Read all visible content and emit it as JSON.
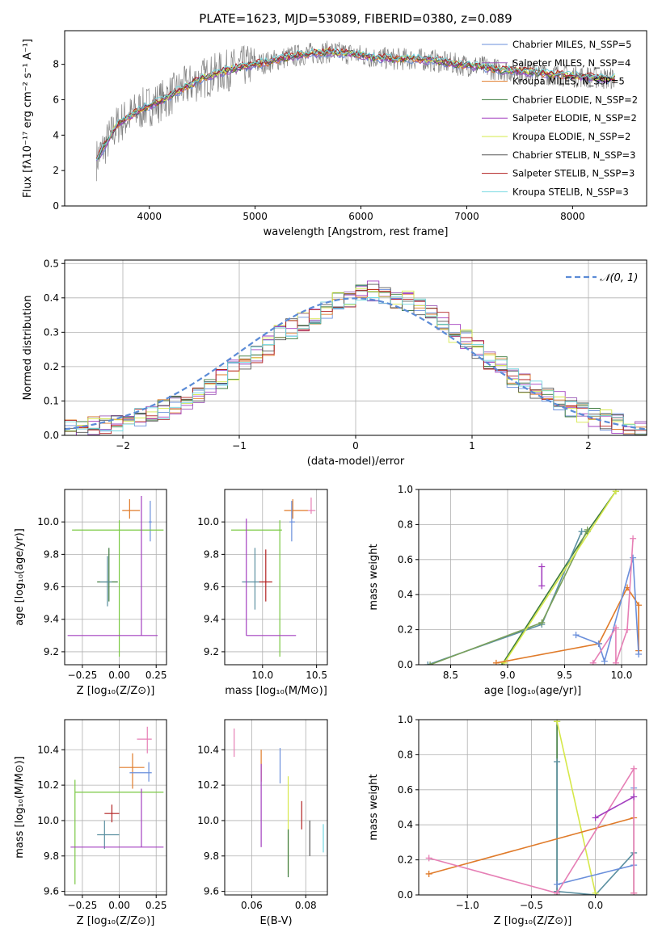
{
  "figure_title": "PLATE=1623, MJD=53089, FIBERID=0380, z=0.089",
  "chart_data": [
    {
      "id": "spectrum",
      "type": "line",
      "title": "PLATE=1623, MJD=53089, FIBERID=0380, z=0.089",
      "xlabel": "wavelength [Angstrom, rest frame]",
      "ylabel": "Flux [fλ10⁻¹⁷ erg cm⁻² s⁻¹ A⁻¹]",
      "xlim": [
        3200,
        8700
      ],
      "ylim": [
        0,
        9.9
      ],
      "xticks": [
        4000,
        5000,
        6000,
        7000,
        8000
      ],
      "xtick_labels": [
        "4000",
        "5000",
        "6000",
        "7000",
        "8000"
      ],
      "yticks": [
        0,
        2,
        4,
        6,
        8
      ],
      "ytick_labels": [
        "0",
        "2",
        "4",
        "6",
        "8"
      ],
      "grid": false,
      "legend_position": "right",
      "data_continuum": {
        "x": [
          3500,
          3700,
          3900,
          4100,
          4300,
          4500,
          4700,
          4900,
          5100,
          5300,
          5500,
          5700,
          5900,
          6100,
          6300,
          6500,
          6700,
          6900,
          7100,
          7300,
          7500,
          7700,
          7900,
          8100,
          8300
        ],
        "y": [
          2.6,
          4.6,
          5.4,
          5.9,
          6.6,
          7.2,
          7.6,
          7.9,
          8.1,
          8.4,
          8.6,
          8.7,
          8.6,
          8.4,
          8.3,
          8.3,
          8.2,
          8.0,
          7.9,
          7.7,
          7.6,
          7.5,
          7.4,
          7.3,
          7.2
        ]
      },
      "series": [
        {
          "name": "Chabrier MILES, N_SSP=5",
          "color": "#6a8fdb"
        },
        {
          "name": "Salpeter MILES, N_SSP=4",
          "color": "#9b59b6"
        },
        {
          "name": "Kroupa MILES, N_SSP=5",
          "color": "#e07b2a"
        },
        {
          "name": "Chabrier ELODIE, N_SSP=2",
          "color": "#3c7a3c"
        },
        {
          "name": "Salpeter ELODIE, N_SSP=2",
          "color": "#a33fbf"
        },
        {
          "name": "Kroupa ELODIE, N_SSP=2",
          "color": "#d6e84a"
        },
        {
          "name": "Chabrier STELIB, N_SSP=3",
          "color": "#555555"
        },
        {
          "name": "Salpeter STELIB, N_SSP=3",
          "color": "#b22222"
        },
        {
          "name": "Kroupa STELIB, N_SSP=3",
          "color": "#72d7e0"
        }
      ]
    },
    {
      "id": "residuals",
      "type": "bar",
      "xlabel": "(data-model)/error",
      "ylabel": "Normed distribution",
      "xlim": [
        -2.5,
        2.5
      ],
      "ylim": [
        0,
        0.51
      ],
      "xticks": [
        -2,
        -1,
        0,
        1,
        2
      ],
      "xtick_labels": [
        "−2",
        "−1",
        "0",
        "1",
        "2"
      ],
      "yticks": [
        0,
        0.1,
        0.2,
        0.3,
        0.4,
        0.5
      ],
      "ytick_labels": [
        "0.0",
        "0.1",
        "0.2",
        "0.3",
        "0.4",
        "0.5"
      ],
      "grid": true,
      "legend_position": "top-right",
      "legend_label": "𝒩(0, 1)",
      "bin_width": 0.1,
      "reference": "normal(0,1)",
      "histogram_levels": [
        0.015,
        0.02,
        0.025,
        0.03,
        0.035,
        0.04,
        0.05,
        0.06,
        0.075,
        0.09,
        0.1,
        0.12,
        0.14,
        0.165,
        0.19,
        0.21,
        0.235,
        0.26,
        0.29,
        0.31,
        0.33,
        0.35,
        0.37,
        0.39,
        0.4,
        0.41,
        0.42,
        0.41,
        0.4,
        0.39,
        0.37,
        0.35,
        0.33,
        0.3,
        0.28,
        0.25,
        0.22,
        0.2,
        0.17,
        0.15,
        0.13,
        0.11,
        0.1,
        0.08,
        0.065,
        0.055,
        0.045,
        0.035,
        0.03,
        0.025
      ]
    },
    {
      "id": "age_vs_Z",
      "type": "scatter",
      "xlabel": "Z [log₁₀(Z/Z⊙)]",
      "ylabel": "age  [log₁₀(age/yr)]",
      "xlim": [
        -0.37,
        0.32
      ],
      "ylim": [
        9.12,
        10.2
      ],
      "xticks": [
        -0.25,
        0.0,
        0.25
      ],
      "xtick_labels": [
        "−0.25",
        "0.00",
        "0.25"
      ],
      "yticks": [
        9.2,
        9.4,
        9.6,
        9.8,
        10.0
      ],
      "ytick_labels": [
        "9.2",
        "9.4",
        "9.6",
        "9.8",
        "10.0"
      ],
      "grid": true,
      "points": [
        {
          "x": 0.07,
          "y": 10.07,
          "xerr": [
            0.05,
            0.07
          ],
          "yerr": [
            0.05,
            0.07
          ],
          "color": "#e07b2a"
        },
        {
          "x": 0.21,
          "y": 10.0,
          "xerr": [
            0.01,
            0.01
          ],
          "yerr": [
            0.12,
            0.13
          ],
          "color": "#6a8fdb"
        },
        {
          "x": 0.0,
          "y": 9.95,
          "xerr": [
            0.32,
            0.3
          ],
          "yerr": [
            0.78,
            0.06
          ],
          "color": "#7ac943"
        },
        {
          "x": -0.07,
          "y": 9.63,
          "xerr": [
            0.08,
            0.06
          ],
          "yerr": [
            0.12,
            0.21
          ],
          "color": "#3c7a3c"
        },
        {
          "x": -0.08,
          "y": 9.63,
          "xerr": [
            0.05,
            0.03
          ],
          "yerr": [
            0.15,
            0.16
          ],
          "color": "#5a8fa0"
        },
        {
          "x": 0.15,
          "y": 9.3,
          "xerr": [
            0.5,
            0.11
          ],
          "yerr": [
            0.0,
            0.86
          ],
          "color": "#a33fbf"
        }
      ]
    },
    {
      "id": "age_vs_mass",
      "type": "scatter",
      "xlabel": "mass [log₁₀(M/M⊙)]",
      "ylabel": "",
      "xlim": [
        9.65,
        10.6
      ],
      "ylim": [
        9.12,
        10.2
      ],
      "xticks": [
        10.0,
        10.5
      ],
      "xtick_labels": [
        "10.0",
        "10.5"
      ],
      "yticks": [
        9.2,
        9.4,
        9.6,
        9.8,
        10.0
      ],
      "ytick_labels": [
        "9.2",
        "9.4",
        "9.6",
        "9.8",
        "10.0"
      ],
      "grid": true,
      "points": [
        {
          "x": 10.28,
          "y": 10.07,
          "xerr": [
            0.08,
            0.14
          ],
          "yerr": [
            0.05,
            0.07
          ],
          "color": "#e07b2a"
        },
        {
          "x": 10.45,
          "y": 10.07,
          "xerr": [
            0.03,
            0.04
          ],
          "yerr": [
            0.02,
            0.08
          ],
          "color": "#e67fb5"
        },
        {
          "x": 10.27,
          "y": 10.0,
          "xerr": [
            0.02,
            0.03
          ],
          "yerr": [
            0.12,
            0.13
          ],
          "color": "#6a8fdb"
        },
        {
          "x": 10.16,
          "y": 9.95,
          "xerr": [
            0.45,
            0.02
          ],
          "yerr": [
            0.78,
            0.06
          ],
          "color": "#7ac943"
        },
        {
          "x": 9.93,
          "y": 9.63,
          "xerr": [
            0.12,
            0.05
          ],
          "yerr": [
            0.17,
            0.21
          ],
          "color": "#5a8fa0"
        },
        {
          "x": 10.03,
          "y": 9.63,
          "xerr": [
            0.06,
            0.06
          ],
          "yerr": [
            0.12,
            0.2
          ],
          "color": "#b22222"
        },
        {
          "x": 9.85,
          "y": 9.3,
          "xerr": [
            0.0,
            0.46
          ],
          "yerr": [
            0.0,
            0.72
          ],
          "color": "#a33fbf"
        }
      ]
    },
    {
      "id": "weight_vs_age",
      "type": "line",
      "xlabel": "age  [log₁₀(age/yr)]",
      "ylabel": "mass weight",
      "xlim": [
        8.22,
        10.22
      ],
      "ylim": [
        0,
        1.0
      ],
      "xticks": [
        8.5,
        9.0,
        9.5,
        10.0
      ],
      "xtick_labels": [
        "8.5",
        "9.0",
        "9.5",
        "10.0"
      ],
      "yticks": [
        0,
        0.2,
        0.4,
        0.6,
        0.8,
        1.0
      ],
      "ytick_labels": [
        "0.0",
        "0.2",
        "0.4",
        "0.6",
        "0.8",
        "1.0"
      ],
      "grid": true,
      "series": [
        {
          "color": "#3c7a3c",
          "x": [
            8.95,
            9.7,
            9.95
          ],
          "y": [
            0.0,
            0.76,
            0.99
          ]
        },
        {
          "color": "#5a8fa0",
          "x": [
            8.3,
            9.3,
            9.65
          ],
          "y": [
            0.0,
            0.23,
            0.76
          ]
        },
        {
          "color": "#7aa05a",
          "x": [
            8.32,
            9.3,
            9.7
          ],
          "y": [
            0.0,
            0.24,
            0.77
          ]
        },
        {
          "color": "#d6e84a",
          "x": [
            8.97,
            9.95
          ],
          "y": [
            0.01,
            0.99
          ]
        },
        {
          "color": "#e07b2a",
          "x": [
            8.9,
            9.8,
            10.05,
            10.15,
            10.15
          ],
          "y": [
            0.01,
            0.12,
            0.44,
            0.34,
            0.08
          ]
        },
        {
          "color": "#6a8fdb",
          "x": [
            9.6,
            9.8,
            9.85,
            10.1,
            10.15
          ],
          "y": [
            0.17,
            0.12,
            0.02,
            0.61,
            0.06
          ]
        },
        {
          "color": "#e67fb5",
          "x": [
            9.75,
            9.95,
            9.95,
            10.05,
            10.1
          ],
          "y": [
            0.01,
            0.21,
            0.01,
            0.2,
            0.72
          ]
        },
        {
          "color": "#a33fbf",
          "x": [
            9.3,
            9.3
          ],
          "y": [
            0.45,
            0.56
          ]
        }
      ]
    },
    {
      "id": "mass_vs_Z",
      "type": "scatter",
      "xlabel": "Z [log₁₀(Z/Z⊙)]",
      "ylabel": "mass [log₁₀(M/M⊙)]",
      "xlim": [
        -0.37,
        0.32
      ],
      "ylim": [
        9.58,
        10.57
      ],
      "xticks": [
        -0.25,
        0.0,
        0.25
      ],
      "xtick_labels": [
        "−0.25",
        "0.00",
        "0.25"
      ],
      "yticks": [
        9.6,
        9.8,
        10.0,
        10.2,
        10.4
      ],
      "ytick_labels": [
        "9.6",
        "9.8",
        "10.0",
        "10.2",
        "10.4"
      ],
      "grid": true,
      "points": [
        {
          "x": 0.19,
          "y": 10.46,
          "xerr": [
            0.07,
            0.03
          ],
          "yerr": [
            0.08,
            0.07
          ],
          "color": "#e67fb5"
        },
        {
          "x": 0.09,
          "y": 10.3,
          "xerr": [
            0.09,
            0.08
          ],
          "yerr": [
            0.12,
            0.08
          ],
          "color": "#e07b2a"
        },
        {
          "x": 0.2,
          "y": 10.27,
          "xerr": [
            0.13,
            0.02
          ],
          "yerr": [
            0.05,
            0.06
          ],
          "color": "#6a8fdb"
        },
        {
          "x": -0.3,
          "y": 10.16,
          "xerr": [
            0.0,
            0.6
          ],
          "yerr": [
            0.52,
            0.07
          ],
          "color": "#7ac943"
        },
        {
          "x": -0.05,
          "y": 10.04,
          "xerr": [
            0.05,
            0.05
          ],
          "yerr": [
            0.05,
            0.05
          ],
          "color": "#b22222"
        },
        {
          "x": -0.1,
          "y": 9.92,
          "xerr": [
            0.05,
            0.1
          ],
          "yerr": [
            0.08,
            0.08
          ],
          "color": "#5a8fa0"
        },
        {
          "x": 0.15,
          "y": 9.85,
          "xerr": [
            0.48,
            0.15
          ],
          "yerr": [
            0.0,
            0.33
          ],
          "color": "#a33fbf"
        }
      ]
    },
    {
      "id": "mass_vs_EBV",
      "type": "scatter",
      "xlabel": "E(B-V)",
      "ylabel": "",
      "xlim": [
        0.05,
        0.088
      ],
      "ylim": [
        9.58,
        10.57
      ],
      "xticks": [
        0.06,
        0.08
      ],
      "xtick_labels": [
        "0.06",
        "0.08"
      ],
      "yticks": [
        9.6,
        9.8,
        10.0,
        10.2,
        10.4
      ],
      "ytick_labels": [
        "9.6",
        "9.8",
        "10.0",
        "10.2",
        "10.4"
      ],
      "grid": true,
      "points": [
        {
          "x": 0.0535,
          "y": 10.44,
          "yerr": [
            0.08,
            0.08
          ],
          "color": "#e67fb5"
        },
        {
          "x": 0.0635,
          "y": 10.3,
          "yerr": [
            0.08,
            0.1
          ],
          "color": "#e07b2a"
        },
        {
          "x": 0.0635,
          "y": 10.1,
          "yerr": [
            0.25,
            0.22
          ],
          "color": "#a33fbf"
        },
        {
          "x": 0.0705,
          "y": 10.28,
          "yerr": [
            0.07,
            0.13
          ],
          "color": "#6a8fdb"
        },
        {
          "x": 0.0735,
          "y": 9.95,
          "yerr": [
            0.25,
            0.3
          ],
          "color": "#d6e84a"
        },
        {
          "x": 0.0735,
          "y": 9.85,
          "yerr": [
            0.17,
            0.1
          ],
          "color": "#3c7a3c"
        },
        {
          "x": 0.0785,
          "y": 10.03,
          "yerr": [
            0.08,
            0.08
          ],
          "color": "#b22222"
        },
        {
          "x": 0.0815,
          "y": 9.9,
          "yerr": [
            0.1,
            0.1
          ],
          "color": "#555555"
        },
        {
          "x": 0.0865,
          "y": 9.9,
          "yerr": [
            0.08,
            0.08
          ],
          "color": "#72d7e0"
        }
      ]
    },
    {
      "id": "weight_vs_Z",
      "type": "line",
      "xlabel": "Z [log₁₀(Z/Z⊙)]",
      "ylabel": "mass weight",
      "xlim": [
        -1.38,
        0.4
      ],
      "ylim": [
        0,
        1.0
      ],
      "xticks": [
        -1.0,
        -0.5,
        0.0
      ],
      "xtick_labels": [
        "−1.0",
        "−0.5",
        "0.0"
      ],
      "yticks": [
        0,
        0.2,
        0.4,
        0.6,
        0.8,
        1.0
      ],
      "ytick_labels": [
        "0.0",
        "0.2",
        "0.4",
        "0.6",
        "0.8",
        "1.0"
      ],
      "grid": true,
      "series": [
        {
          "color": "#3c7a3c",
          "x": [
            -0.3,
            -0.3
          ],
          "y": [
            0.0,
            0.99
          ]
        },
        {
          "color": "#5a8fa0",
          "x": [
            -0.3,
            -0.3,
            0.0,
            0.3,
            0.3
          ],
          "y": [
            0.76,
            0.02,
            0.0,
            0.24,
            0.01
          ]
        },
        {
          "color": "#d6e84a",
          "x": [
            -0.3,
            0.0
          ],
          "y": [
            0.99,
            0.01
          ]
        },
        {
          "color": "#e07b2a",
          "x": [
            -1.3,
            0.3,
            0.3
          ],
          "y": [
            0.12,
            0.44,
            0.01
          ]
        },
        {
          "color": "#6a8fdb",
          "x": [
            -0.3,
            0.3,
            0.3
          ],
          "y": [
            0.06,
            0.17,
            0.61
          ]
        },
        {
          "color": "#e67fb5",
          "x": [
            -1.3,
            -0.3,
            0.3,
            0.3
          ],
          "y": [
            0.21,
            0.01,
            0.72,
            0.01
          ]
        },
        {
          "color": "#a33fbf",
          "x": [
            0.0,
            0.3
          ],
          "y": [
            0.44,
            0.56
          ]
        }
      ]
    }
  ]
}
